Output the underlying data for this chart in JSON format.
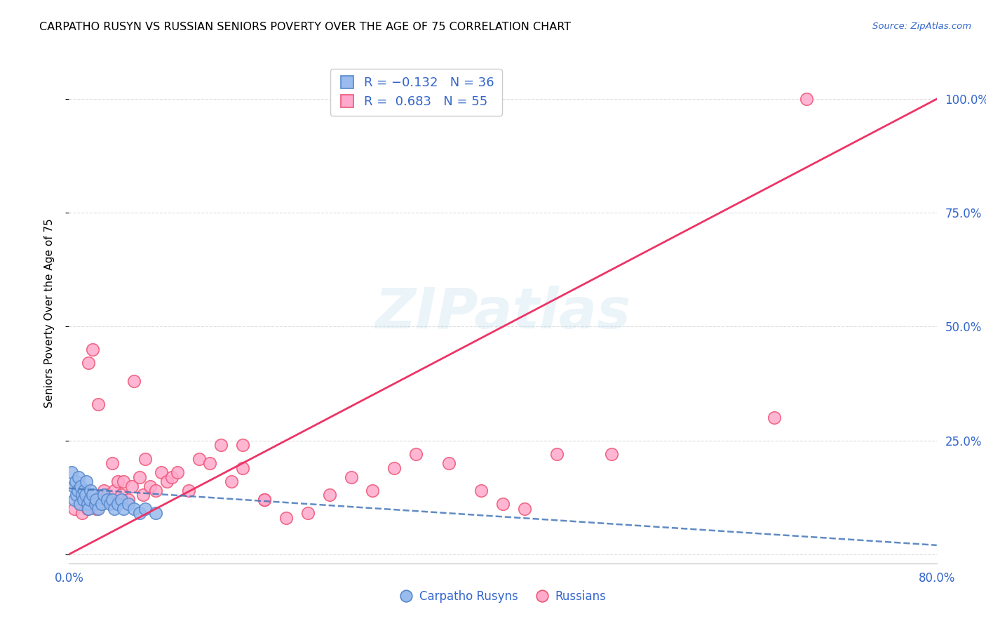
{
  "title": "CARPATHO RUSYN VS RUSSIAN SENIORS POVERTY OVER THE AGE OF 75 CORRELATION CHART",
  "source": "Source: ZipAtlas.com",
  "ylabel": "Seniors Poverty Over the Age of 75",
  "xlim": [
    0.0,
    0.8
  ],
  "ylim": [
    -0.02,
    1.08
  ],
  "watermark": "ZIPatlas",
  "blue_scatter_color": "#99BBEE",
  "blue_edge_color": "#5588CC",
  "pink_scatter_color": "#FFAACC",
  "pink_edge_color": "#EE5577",
  "line_blue_color": "#4477BB",
  "line_pink_color": "#EE3366",
  "grid_color": "#DDDDDD",
  "tick_label_color": "#3366CC",
  "carpatho_x": [
    0.002,
    0.004,
    0.005,
    0.006,
    0.007,
    0.008,
    0.009,
    0.01,
    0.011,
    0.012,
    0.013,
    0.014,
    0.015,
    0.016,
    0.017,
    0.018,
    0.019,
    0.02,
    0.022,
    0.024,
    0.025,
    0.027,
    0.03,
    0.032,
    0.035,
    0.038,
    0.04,
    0.042,
    0.045,
    0.048,
    0.05,
    0.055,
    0.06,
    0.065,
    0.07,
    0.08
  ],
  "carpatho_y": [
    0.18,
    0.15,
    0.12,
    0.16,
    0.13,
    0.14,
    0.17,
    0.11,
    0.15,
    0.13,
    0.12,
    0.14,
    0.13,
    0.16,
    0.11,
    0.1,
    0.12,
    0.14,
    0.13,
    0.11,
    0.12,
    0.1,
    0.11,
    0.13,
    0.12,
    0.11,
    0.12,
    0.1,
    0.11,
    0.12,
    0.1,
    0.11,
    0.1,
    0.09,
    0.1,
    0.09
  ],
  "russian_x": [
    0.005,
    0.01,
    0.012,
    0.015,
    0.017,
    0.018,
    0.02,
    0.022,
    0.025,
    0.027,
    0.03,
    0.032,
    0.035,
    0.038,
    0.04,
    0.042,
    0.045,
    0.048,
    0.05,
    0.055,
    0.058,
    0.06,
    0.065,
    0.068,
    0.07,
    0.075,
    0.08,
    0.085,
    0.09,
    0.095,
    0.1,
    0.11,
    0.12,
    0.13,
    0.14,
    0.15,
    0.16,
    0.18,
    0.2,
    0.22,
    0.24,
    0.26,
    0.28,
    0.3,
    0.32,
    0.35,
    0.38,
    0.4,
    0.45,
    0.5,
    0.16,
    0.18,
    0.42,
    0.65,
    0.68
  ],
  "russian_y": [
    0.1,
    0.11,
    0.09,
    0.13,
    0.1,
    0.42,
    0.11,
    0.45,
    0.1,
    0.33,
    0.11,
    0.14,
    0.13,
    0.12,
    0.2,
    0.14,
    0.16,
    0.13,
    0.16,
    0.12,
    0.15,
    0.38,
    0.17,
    0.13,
    0.21,
    0.15,
    0.14,
    0.18,
    0.16,
    0.17,
    0.18,
    0.14,
    0.21,
    0.2,
    0.24,
    0.16,
    0.19,
    0.12,
    0.08,
    0.09,
    0.13,
    0.17,
    0.14,
    0.19,
    0.22,
    0.2,
    0.14,
    0.11,
    0.22,
    0.22,
    0.24,
    0.12,
    0.1,
    0.3,
    1.0
  ],
  "blue_line_x": [
    0.0,
    0.8
  ],
  "blue_line_y": [
    0.145,
    0.02
  ],
  "pink_line_x": [
    0.0,
    0.8
  ],
  "pink_line_y": [
    0.0,
    1.0
  ]
}
